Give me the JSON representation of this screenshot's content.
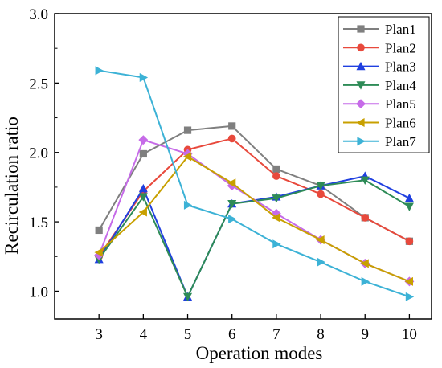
{
  "chart_data": {
    "type": "line",
    "title": "",
    "xlabel": "Operation modes",
    "ylabel": "Recirculation ratio",
    "x": [
      3,
      4,
      5,
      6,
      7,
      8,
      9,
      10
    ],
    "xlim": [
      2,
      10.5
    ],
    "ylim": [
      0.8,
      3.0
    ],
    "xticks": [
      3,
      4,
      5,
      6,
      7,
      8,
      9,
      10
    ],
    "yticks": [
      1.0,
      1.5,
      2.0,
      2.5,
      3.0
    ],
    "ytick_labels": [
      "1.0",
      "1.5",
      "2.0",
      "2.5",
      "3.0"
    ],
    "grid": false,
    "legend_position": "top-right",
    "series": [
      {
        "name": "Plan1",
        "color": "#7f7f7f",
        "marker": "square",
        "values": [
          1.44,
          1.99,
          2.16,
          2.19,
          1.88,
          1.76,
          1.53,
          1.36
        ]
      },
      {
        "name": "Plan2",
        "color": "#e8493c",
        "marker": "circle",
        "values": [
          1.25,
          1.72,
          2.02,
          2.1,
          1.83,
          1.7,
          1.53,
          1.36
        ]
      },
      {
        "name": "Plan3",
        "color": "#1f3fe0",
        "marker": "triangle-up",
        "values": [
          1.23,
          1.74,
          0.96,
          1.63,
          1.68,
          1.76,
          1.83,
          1.67
        ]
      },
      {
        "name": "Plan4",
        "color": "#2e8b57",
        "marker": "triangle-down",
        "values": [
          1.23,
          1.68,
          0.96,
          1.63,
          1.67,
          1.76,
          1.8,
          1.61
        ]
      },
      {
        "name": "Plan5",
        "color": "#c66be8",
        "marker": "diamond",
        "values": [
          1.26,
          2.09,
          1.99,
          1.76,
          1.56,
          1.37,
          1.2,
          1.07
        ]
      },
      {
        "name": "Plan6",
        "color": "#c8a000",
        "marker": "triangle-left",
        "values": [
          1.28,
          1.57,
          1.97,
          1.78,
          1.53,
          1.37,
          1.2,
          1.07
        ]
      },
      {
        "name": "Plan7",
        "color": "#3cb2d6",
        "marker": "triangle-right",
        "values": [
          2.59,
          2.54,
          1.62,
          1.52,
          1.34,
          1.21,
          1.07,
          0.96
        ]
      }
    ]
  }
}
